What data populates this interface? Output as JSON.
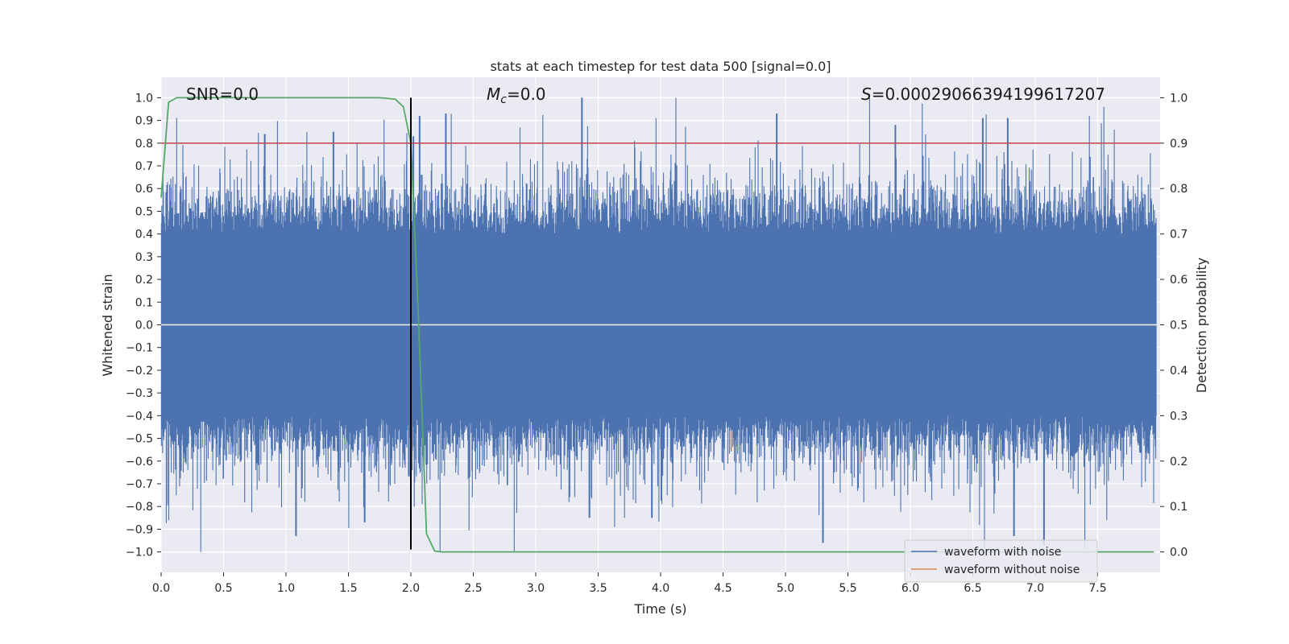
{
  "chart_data": {
    "type": "line",
    "title": "stats at each timestep for test data 500 [signal=0.0]",
    "xlabel": "Time (s)",
    "ylabel": "Whitened strain",
    "y2label": "Detection probability",
    "xlim": [
      0.0,
      8.0
    ],
    "ylim": [
      -1.09,
      1.09
    ],
    "y2lim": [
      -0.045,
      1.045
    ],
    "x_ticks": [
      0.0,
      0.5,
      1.0,
      1.5,
      2.0,
      2.5,
      3.0,
      3.5,
      4.0,
      4.5,
      5.0,
      5.5,
      6.0,
      6.5,
      7.0,
      7.5
    ],
    "x_tick_labels": [
      "0.0",
      "0.5",
      "1.0",
      "1.5",
      "2.0",
      "2.5",
      "3.0",
      "3.5",
      "4.0",
      "4.5",
      "5.0",
      "5.5",
      "6.0",
      "6.5",
      "7.0",
      "7.5"
    ],
    "y_ticks": [
      1.0,
      0.9,
      0.8,
      0.7,
      0.6,
      0.5,
      0.4,
      0.3,
      0.2,
      0.1,
      0.0,
      -0.1,
      -0.2,
      -0.3,
      -0.4,
      -0.5,
      -0.6,
      -0.7,
      -0.8,
      -0.9,
      -1.0
    ],
    "y_tick_labels": [
      "1.0",
      "0.9",
      "0.8",
      "0.7",
      "0.6",
      "0.5",
      "0.4",
      "0.3",
      "0.2",
      "0.1",
      "0.0",
      "−0.1",
      "−0.2",
      "−0.3",
      "−0.4",
      "−0.5",
      "−0.6",
      "−0.7",
      "−0.8",
      "−0.9",
      "−1.0"
    ],
    "y2_ticks": [
      1.0,
      0.9,
      0.8,
      0.7,
      0.6,
      0.5,
      0.4,
      0.3,
      0.2,
      0.1,
      0.0
    ],
    "y2_tick_labels": [
      "1.0",
      "0.9",
      "0.8",
      "0.7",
      "0.6",
      "0.5",
      "0.4",
      "0.3",
      "0.2",
      "0.1",
      "0.0"
    ],
    "annotations": {
      "snr": "SNR=0.0",
      "mc_symbol": "M",
      "mc_sub": "c",
      "mc_value": "=0.0",
      "s_symbol": "S",
      "s_value": "=0.00029066394199617207"
    },
    "threshold": {
      "value": 0.9,
      "axis": "y2",
      "color": "#c44e52"
    },
    "marker_line": {
      "x": 2.0,
      "y_from": -0.99,
      "y_to": 1.0,
      "color": "#000000"
    },
    "series": [
      {
        "name": "waveform with noise",
        "color": "#4c72b0",
        "axis": "y",
        "style": "noise",
        "typical_amplitude": 0.4,
        "peak_amplitude": 1.0,
        "notable_peaks": [
          [
            0.83,
            0.84
          ],
          [
            1.38,
            0.85
          ],
          [
            2.02,
            0.83
          ],
          [
            2.07,
            0.92
          ],
          [
            2.28,
            0.93
          ],
          [
            3.37,
            1.0
          ],
          [
            4.93,
            0.93
          ],
          [
            5.88,
            0.88
          ],
          [
            6.58,
            0.91
          ],
          [
            6.78,
            0.91
          ]
        ],
        "notable_troughs": [
          [
            1.08,
            -0.93
          ],
          [
            1.63,
            -0.87
          ],
          [
            3.43,
            -0.85
          ],
          [
            3.93,
            -0.85
          ],
          [
            5.3,
            -0.96
          ],
          [
            6.83,
            -0.93
          ],
          [
            7.07,
            -0.97
          ]
        ]
      },
      {
        "name": "waveform without noise",
        "color": "#dd8452",
        "axis": "y",
        "x": [
          0.0,
          8.0
        ],
        "values": [
          0.0,
          0.0
        ]
      },
      {
        "name": "detection probability",
        "color": "#55a868",
        "axis": "y2",
        "x": [
          0.0,
          0.06,
          0.125,
          0.25,
          0.5,
          1.0,
          1.5,
          1.75,
          1.875,
          1.94,
          2.0,
          2.06,
          2.125,
          2.19,
          2.25,
          2.5,
          3.0,
          4.0,
          5.0,
          6.0,
          7.0,
          7.95
        ],
        "values": [
          0.78,
          0.99,
          1.0,
          1.0,
          1.0,
          1.0,
          1.0,
          1.0,
          0.997,
          0.98,
          0.9,
          0.52,
          0.04,
          0.002,
          0.0,
          0.0,
          0.0,
          0.0,
          0.0,
          0.0,
          0.0,
          0.0
        ]
      }
    ],
    "legend": {
      "position": "lower-right",
      "entries": [
        {
          "label": "waveform with noise",
          "color": "#4c72b0"
        },
        {
          "label": "waveform without noise",
          "color": "#dd8452"
        }
      ]
    }
  }
}
